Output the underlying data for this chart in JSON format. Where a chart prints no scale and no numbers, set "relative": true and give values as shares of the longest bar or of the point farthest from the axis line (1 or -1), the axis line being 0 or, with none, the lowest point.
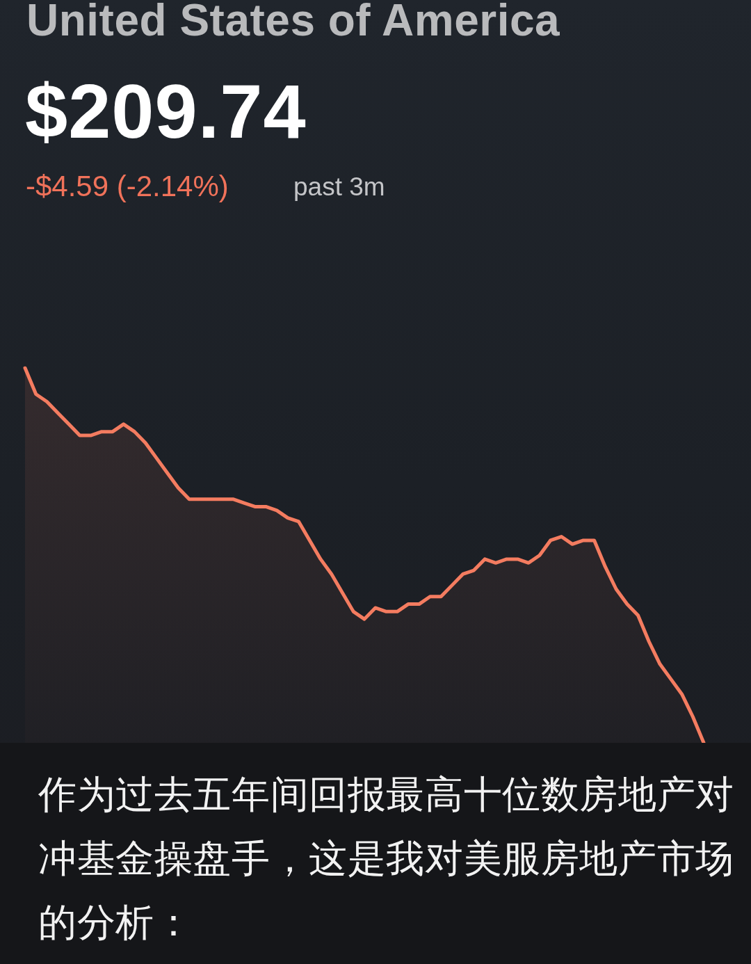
{
  "chart_data": {
    "type": "area",
    "title": "United States of America",
    "subtitle": "$209.74",
    "annotations": [
      "-$4.59 (-2.14%)",
      "past 3m",
      "作为过去五年间回报最高十位数房地产对冲基金操盘手，这是我对美服房地产市场的分析："
    ],
    "relative": true,
    "marker": "none",
    "categories": [
      null,
      null,
      null,
      null,
      null,
      null,
      null,
      null,
      null,
      null,
      null,
      null,
      null,
      null,
      null,
      null,
      null,
      null,
      null,
      null,
      null,
      null,
      null,
      null,
      null,
      null,
      null,
      null,
      null,
      null,
      null,
      null,
      null,
      null,
      null,
      null,
      null,
      null,
      null,
      null,
      null,
      null,
      null,
      null,
      null,
      null,
      null,
      null,
      null,
      null,
      null,
      null,
      null,
      null,
      null,
      null,
      null,
      null,
      null,
      null,
      null,
      null,
      null
    ],
    "series": [
      {
        "color": "#f47c60",
        "values": [
          1.0,
          0.93,
          0.91,
          0.88,
          0.85,
          0.82,
          0.82,
          0.83,
          0.83,
          0.85,
          0.83,
          0.8,
          0.76,
          0.72,
          0.68,
          0.65,
          0.65,
          0.65,
          0.65,
          0.65,
          0.64,
          0.63,
          0.63,
          0.62,
          0.6,
          0.59,
          0.54,
          0.49,
          0.45,
          0.4,
          0.35,
          0.33,
          0.36,
          0.35,
          0.35,
          0.37,
          0.37,
          0.39,
          0.39,
          0.42,
          0.45,
          0.46,
          0.49,
          0.48,
          0.49,
          0.49,
          0.48,
          0.5,
          0.54,
          0.55,
          0.53,
          0.54,
          0.54,
          0.47,
          0.41,
          0.37,
          0.34,
          0.27,
          0.21,
          0.17,
          0.13,
          0.07,
          0.0
        ]
      }
    ]
  }
}
